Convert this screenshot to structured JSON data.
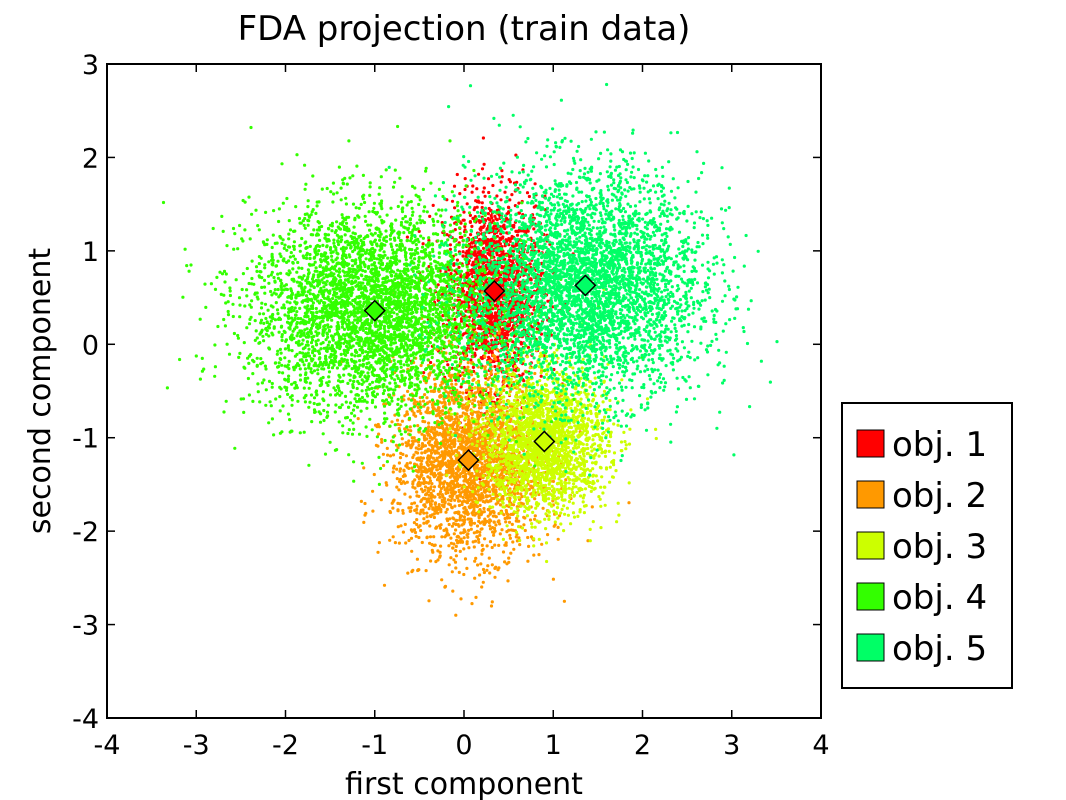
{
  "chart_data": {
    "type": "scatter",
    "title": "FDA projection (train data)",
    "xlabel": "first component",
    "ylabel": "second component",
    "xlim": [
      -4,
      4
    ],
    "ylim": [
      -4,
      3
    ],
    "xticks": [
      "-4",
      "-3",
      "-2",
      "-1",
      "0",
      "1",
      "2",
      "3",
      "4"
    ],
    "yticks": [
      "3",
      "2",
      "1",
      "0",
      "-1",
      "-2",
      "-3",
      "-4"
    ],
    "grid": false,
    "legend_position": "outside-right",
    "series": [
      {
        "name": "obj. 1",
        "color": "#ff0000",
        "center": [
          0.34,
          0.57
        ],
        "spread": [
          0.28,
          0.5
        ],
        "points": 1800
      },
      {
        "name": "obj. 2",
        "color": "#ff9900",
        "center": [
          0.05,
          -1.24
        ],
        "spread": [
          0.42,
          0.5
        ],
        "points": 2600
      },
      {
        "name": "obj. 3",
        "color": "#ccff00",
        "center": [
          0.9,
          -1.04
        ],
        "spread": [
          0.35,
          0.38
        ],
        "points": 2200
      },
      {
        "name": "obj. 4",
        "color": "#33ff00",
        "center": [
          -1.0,
          0.36
        ],
        "spread": [
          0.7,
          0.55
        ],
        "points": 4200
      },
      {
        "name": "obj. 5",
        "color": "#00ff66",
        "center": [
          1.36,
          0.63
        ],
        "spread": [
          0.65,
          0.6
        ],
        "points": 4200
      }
    ]
  }
}
